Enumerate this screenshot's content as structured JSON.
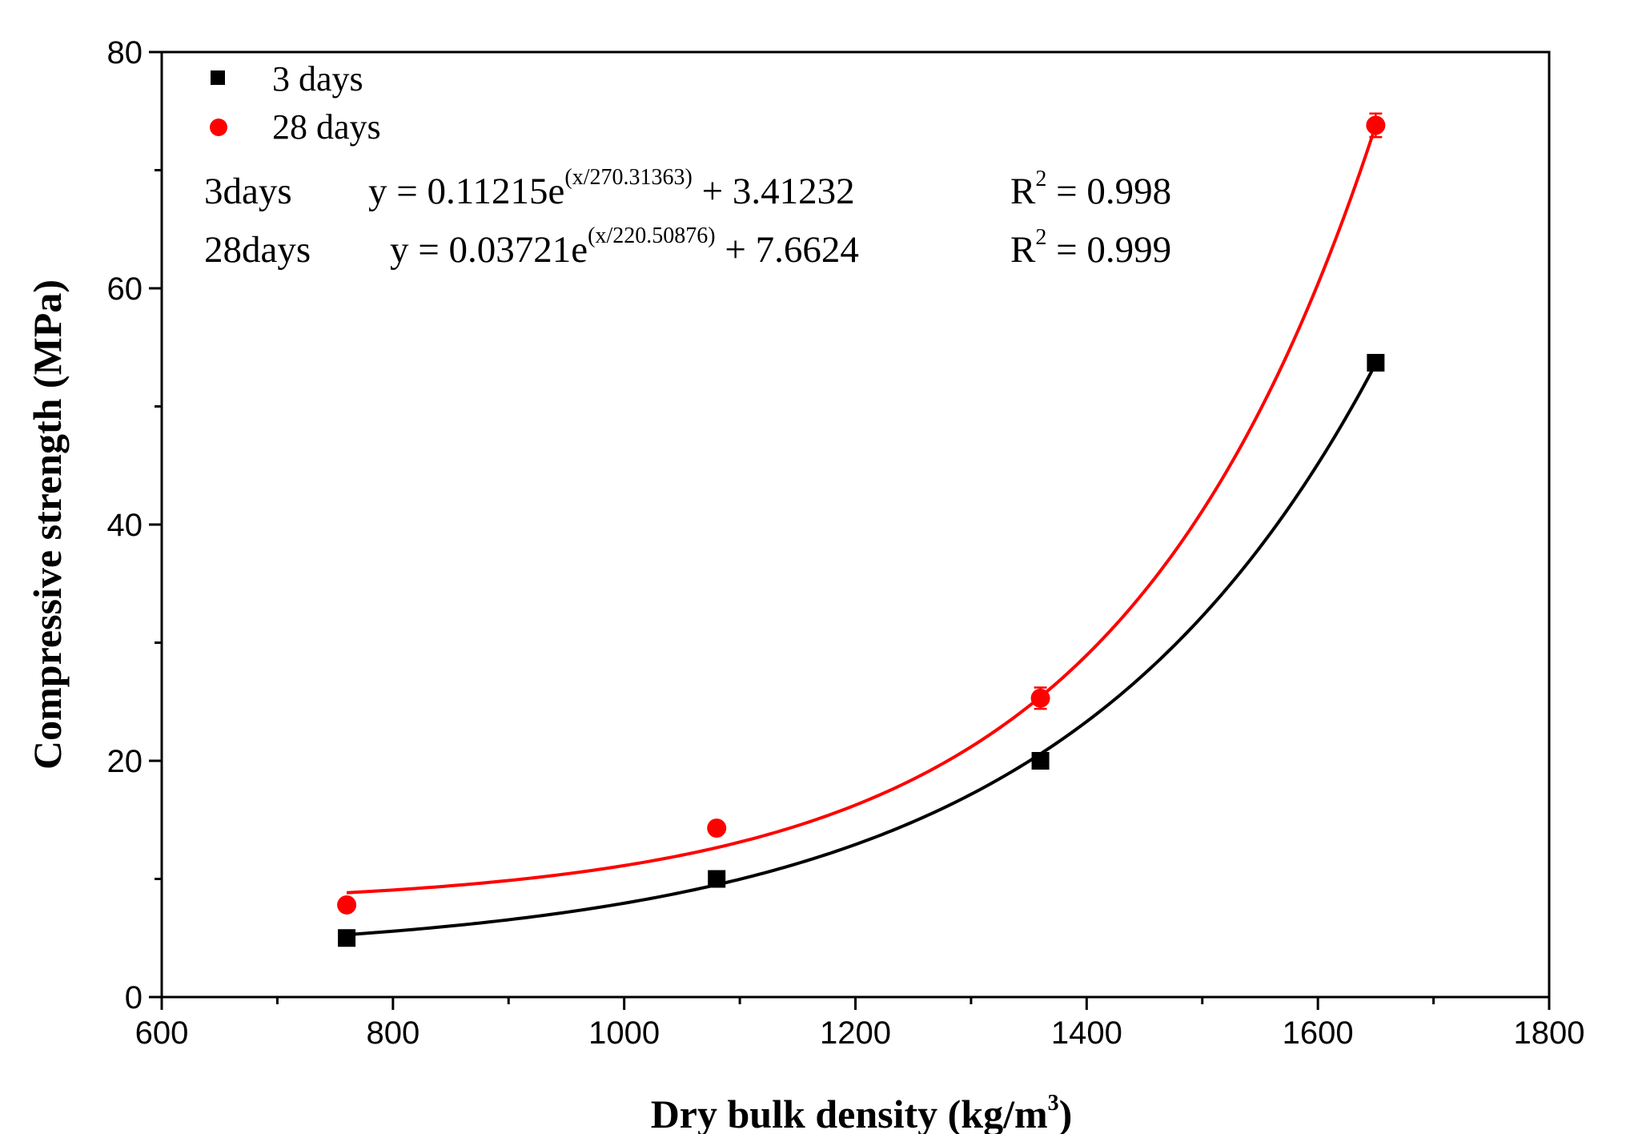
{
  "chart_data": {
    "type": "scatter",
    "xlabel": "Dry bulk density (kg/m",
    "xlabel_sup": "3",
    "xlabel_end": ")",
    "ylabel": "Compressive strength (MPa)",
    "xlim": [
      600,
      1800
    ],
    "ylim": [
      0,
      80
    ],
    "x_ticks": [
      "600",
      "800",
      "1000",
      "1200",
      "1400",
      "1600",
      "1800"
    ],
    "y_ticks": [
      "0",
      "20",
      "40",
      "60",
      "80"
    ],
    "legend_position": "top-left",
    "series": [
      {
        "name": "3 days",
        "color": "#000000",
        "marker": "square",
        "x": [
          760,
          1080,
          1360,
          1650
        ],
        "y": [
          5.0,
          10.0,
          20.0,
          53.7
        ],
        "yerr": [
          0.3,
          0.4,
          0.4,
          0.5
        ],
        "fit": {
          "a": 0.11215,
          "t": 270.31363,
          "c": 3.41232
        }
      },
      {
        "name": "28 days",
        "color": "#ff0000",
        "marker": "circle",
        "x": [
          760,
          1080,
          1360,
          1650
        ],
        "y": [
          7.8,
          14.3,
          25.3,
          73.8
        ],
        "yerr": [
          0.3,
          0.4,
          0.9,
          1.0
        ],
        "fit": {
          "a": 0.03721,
          "t": 220.50876,
          "c": 7.6624
        }
      }
    ],
    "annotations": [
      {
        "label": "3days",
        "eq_main": "y = 0.11215e",
        "eq_sup": "(x/270.31363)",
        "eq_tail": " + 3.41232",
        "r_main": "R",
        "r_sup": "2",
        "r_tail": " = 0.998"
      },
      {
        "label": "28days",
        "eq_main": "y = 0.03721e",
        "eq_sup": "(x/220.50876)",
        "eq_tail": " + 7.6624",
        "r_main": "R",
        "r_sup": "2",
        "r_tail": " = 0.999"
      }
    ]
  }
}
